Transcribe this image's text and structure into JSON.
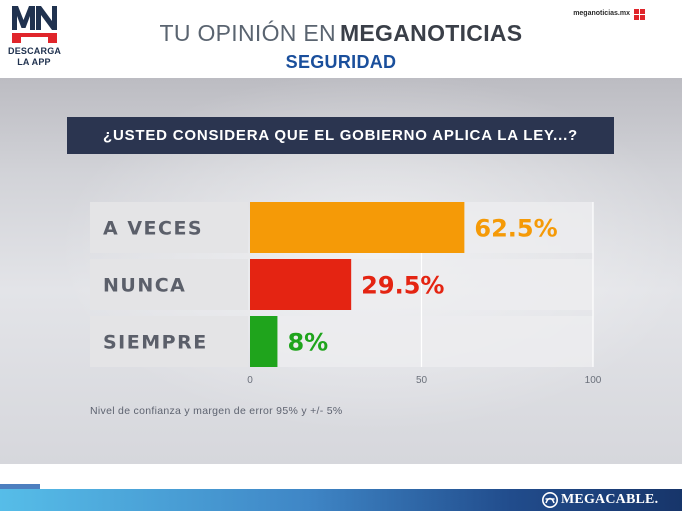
{
  "header": {
    "logo_text": "MN",
    "logo_line1": "DESCARGA",
    "logo_line2": "LA APP",
    "title_light": "TU OPINIÓN EN",
    "title_bold": "MEGANOTICIAS",
    "subtitle": "SEGURIDAD",
    "site": "meganoticias.mx"
  },
  "question": "¿USTED CONSIDERA QUE EL GOBIERNO APLICA LA LEY...?",
  "chart_data": {
    "type": "bar",
    "orientation": "horizontal",
    "categories": [
      "A VECES",
      "NUNCA",
      "SIEMPRE"
    ],
    "values": [
      62.5,
      29.5,
      8
    ],
    "value_labels": [
      "62.5%",
      "29.5%",
      "8%"
    ],
    "colors": [
      "#f59a07",
      "#e42412",
      "#1fa41c"
    ],
    "xlim": [
      0,
      100
    ],
    "xticks": [
      0,
      50,
      100
    ],
    "title": "",
    "xlabel": "",
    "ylabel": "",
    "grid": true
  },
  "note": "Nivel de confianza y margen de error 95% y +/- 5%",
  "footer": {
    "brand": "MEGACABLE."
  }
}
